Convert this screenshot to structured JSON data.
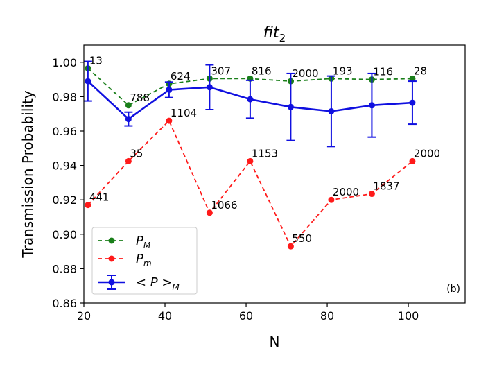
{
  "chart_data": {
    "type": "line",
    "title": "fit",
    "title_subscript": "2",
    "xlabel": "N",
    "ylabel": "Transmission Probability",
    "panel_label": "(b)",
    "xlim": [
      20,
      114
    ],
    "ylim": [
      0.86,
      1.01
    ],
    "xticks": [
      20,
      40,
      60,
      80,
      100
    ],
    "yticks": [
      0.86,
      0.88,
      0.9,
      0.92,
      0.94,
      0.96,
      0.98,
      1.0
    ],
    "ytick_labels": [
      "0.86",
      "0.88",
      "0.90",
      "0.92",
      "0.94",
      "0.96",
      "0.98",
      "1.00"
    ],
    "x": [
      21,
      31,
      41,
      51,
      61,
      71,
      81,
      91,
      101
    ],
    "series": [
      {
        "name": "P_M",
        "legend_main": "P",
        "legend_sub": "M",
        "color": "#1a7f1a",
        "dashed": true,
        "values": [
          0.9965,
          0.975,
          0.9875,
          0.9905,
          0.9905,
          0.989,
          0.9905,
          0.99,
          0.9905
        ],
        "point_labels": [
          "13",
          "788",
          "624",
          "307",
          "816",
          "2000",
          "193",
          "116",
          "28"
        ]
      },
      {
        "name": "P_m",
        "legend_main": "P",
        "legend_sub": "m",
        "color": "#ff1a1a",
        "dashed": true,
        "values": [
          0.917,
          0.9425,
          0.966,
          0.9125,
          0.9425,
          0.893,
          0.92,
          0.9235,
          0.9425
        ],
        "point_labels": [
          "441",
          "35",
          "1104",
          "1066",
          "1153",
          "550",
          "2000",
          "1837",
          "2000"
        ]
      },
      {
        "name": "<P>_M",
        "legend_main": "< P >",
        "legend_sub": "M",
        "color": "#1010e0",
        "dashed": false,
        "values": [
          0.989,
          0.967,
          0.984,
          0.9855,
          0.9785,
          0.974,
          0.9715,
          0.975,
          0.9765
        ],
        "errors": [
          0.0115,
          0.004,
          0.0045,
          0.013,
          0.011,
          0.0195,
          0.0205,
          0.0185,
          0.0125
        ]
      }
    ]
  }
}
